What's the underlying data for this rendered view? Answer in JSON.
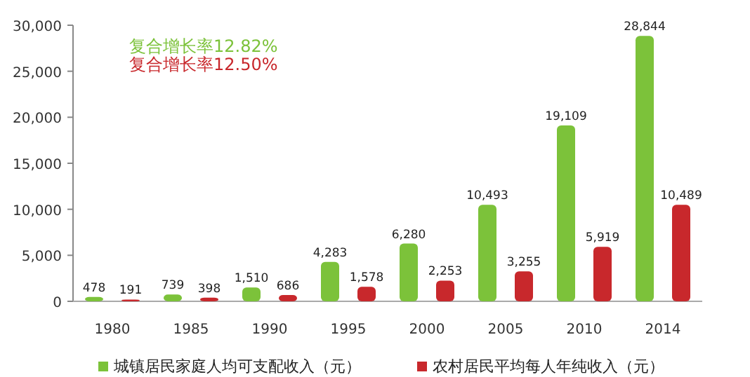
{
  "chart_data": {
    "type": "bar",
    "categories": [
      "1980",
      "1985",
      "1990",
      "1995",
      "2000",
      "2005",
      "2010",
      "2014"
    ],
    "series": [
      {
        "name": "城镇居民家庭人均可支配收入（元）",
        "color": "#7cc23a",
        "values": [
          478,
          739,
          1510,
          4283,
          6280,
          10493,
          19109,
          28844
        ],
        "value_labels": [
          "478",
          "739",
          "1,510",
          "4,283",
          "6,280",
          "10,493",
          "19,109",
          "28,844"
        ]
      },
      {
        "name": "农村居民平均每人年纯收入（元）",
        "color": "#c8282c",
        "values": [
          191,
          398,
          686,
          1578,
          2253,
          3255,
          5919,
          10489
        ],
        "value_labels": [
          "191",
          "398",
          "686",
          "1,578",
          "2,253",
          "3,255",
          "5,919",
          "10,489"
        ]
      }
    ],
    "ylim": [
      0,
      30000
    ],
    "yticks": [
      {
        "value": 0,
        "label": "0"
      },
      {
        "value": 5000,
        "label": "5,000"
      },
      {
        "value": 10000,
        "label": "10,000"
      },
      {
        "value": 15000,
        "label": "15,000"
      },
      {
        "value": 20000,
        "label": "20,000"
      },
      {
        "value": 25000,
        "label": "25,000"
      },
      {
        "value": 30000,
        "label": "30,000"
      }
    ],
    "legend": "bottom",
    "grid": false,
    "annotations": [
      "复合增长率12.82%",
      "复合增长率12.50%"
    ]
  }
}
